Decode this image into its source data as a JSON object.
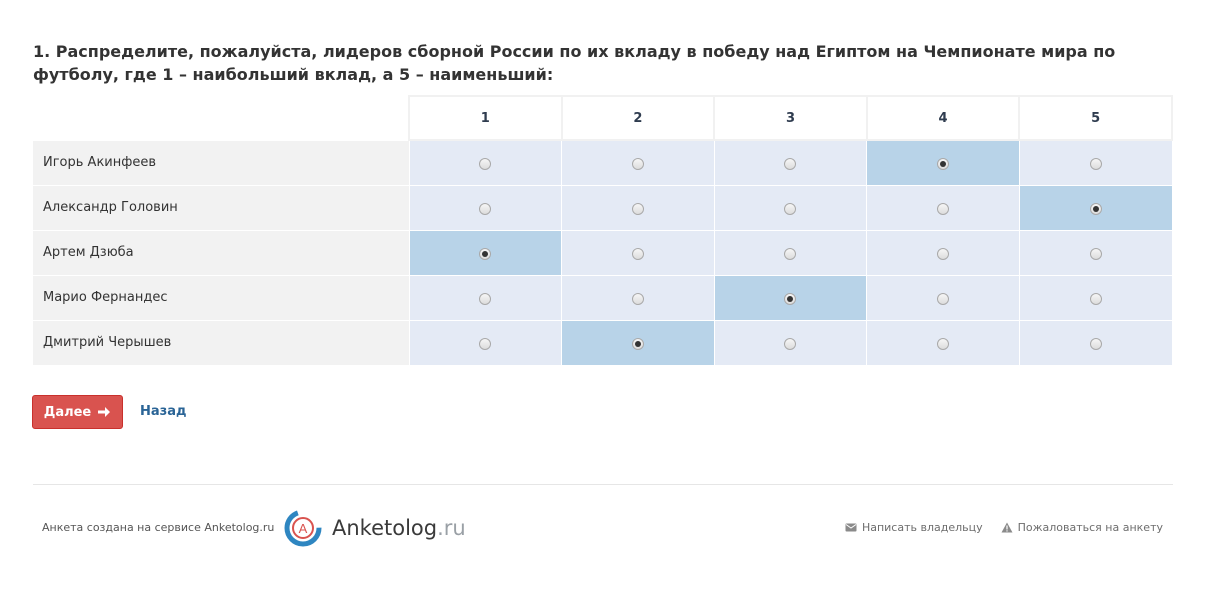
{
  "question": {
    "text": "1. Распределите, пожалуйста, лидеров сборной России по их вкладу в победу над Египтом на Чемпионате мира по футболу, где 1 – наибольший вклад, а 5 – наименьший:"
  },
  "matrix": {
    "columns": [
      "1",
      "2",
      "3",
      "4",
      "5"
    ],
    "rows": [
      {
        "label": "Игорь Акинфеев",
        "selected": 4
      },
      {
        "label": "Александр Головин",
        "selected": 5
      },
      {
        "label": "Артем Дзюба",
        "selected": 1
      },
      {
        "label": "Марио Фернандес",
        "selected": 3
      },
      {
        "label": "Дмитрий Черышев",
        "selected": 2
      }
    ]
  },
  "nav": {
    "next_label": "Далее",
    "next_icon": "arrow-right-icon",
    "back_label": "Назад"
  },
  "footer": {
    "created_text": "Анкета создана на сервисе Anketolog.ru",
    "logo_letter": "A",
    "logo_main": "Anketolog",
    "logo_suffix": ".ru",
    "write_owner": "Написать владельцу",
    "write_owner_icon": "envelope-icon",
    "complain": "Пожаловаться на анкету",
    "complain_icon": "warning-icon"
  },
  "colors": {
    "next_button": "#d9534f",
    "selected_cell": "#b8d3e8",
    "option_cell": "#e4eaf5",
    "label_cell": "#f2f2f2",
    "link": "#2a6496"
  }
}
